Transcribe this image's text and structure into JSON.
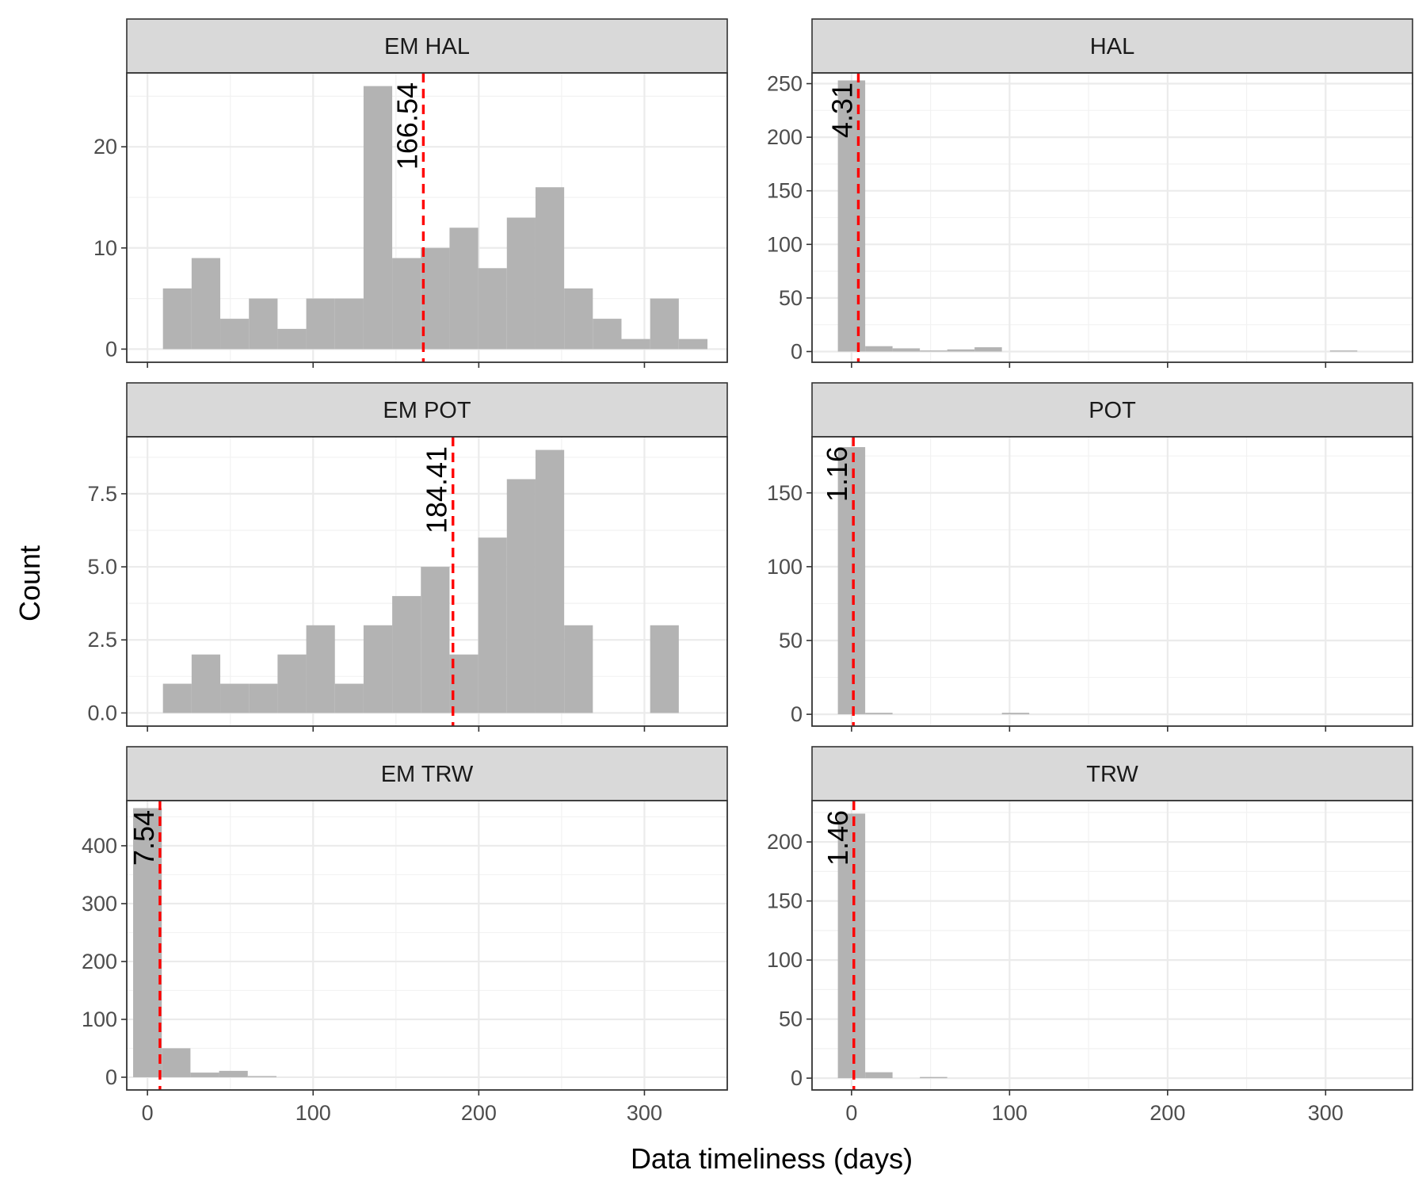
{
  "figure": {
    "xlabel": "Data timeliness (days)",
    "ylabel": "Count",
    "x_ticks": [
      0,
      100,
      200,
      300
    ],
    "colors": {
      "bar": "#b3b3b3",
      "median_line": "#ff0000",
      "strip_bg": "#d9d9d9",
      "panel_border": "#333333",
      "grid_major": "#ebebeb"
    }
  },
  "chart_data": [
    {
      "type": "bar",
      "title": "EM HAL",
      "panel_title": "EM HAL",
      "xlim": [
        -12.5,
        350
      ],
      "ylim": [
        -1.3,
        27.3
      ],
      "y_ticks": [
        0,
        10,
        20
      ],
      "y_tick_labels": [
        "0",
        "10",
        "20"
      ],
      "bin_width": 17.3,
      "bins": [
        {
          "x": 18,
          "count": 6
        },
        {
          "x": 35.3,
          "count": 9
        },
        {
          "x": 52.6,
          "count": 3
        },
        {
          "x": 69.9,
          "count": 5
        },
        {
          "x": 87.2,
          "count": 2
        },
        {
          "x": 104.5,
          "count": 5
        },
        {
          "x": 121.8,
          "count": 5
        },
        {
          "x": 139.1,
          "count": 26
        },
        {
          "x": 156.4,
          "count": 9
        },
        {
          "x": 173.7,
          "count": 10
        },
        {
          "x": 191,
          "count": 12
        },
        {
          "x": 208.3,
          "count": 8
        },
        {
          "x": 225.6,
          "count": 13
        },
        {
          "x": 242.9,
          "count": 16
        },
        {
          "x": 260.2,
          "count": 6
        },
        {
          "x": 277.5,
          "count": 3
        },
        {
          "x": 294.8,
          "count": 1
        },
        {
          "x": 312.1,
          "count": 5
        },
        {
          "x": 329.4,
          "count": 1
        }
      ],
      "median": 166.54,
      "median_label": "166.54"
    },
    {
      "type": "bar",
      "title": "HAL",
      "panel_title": "HAL",
      "xlim": [
        -25,
        355
      ],
      "ylim": [
        -10,
        260
      ],
      "y_ticks": [
        0,
        50,
        100,
        150,
        200,
        250
      ],
      "y_tick_labels": [
        "0",
        "50",
        "100",
        "150",
        "200",
        "250"
      ],
      "bin_width": 17.3,
      "bins": [
        {
          "x": 0,
          "count": 253
        },
        {
          "x": 17.3,
          "count": 5
        },
        {
          "x": 34.6,
          "count": 3
        },
        {
          "x": 51.9,
          "count": 1
        },
        {
          "x": 69.2,
          "count": 2
        },
        {
          "x": 86.5,
          "count": 4
        },
        {
          "x": 311.4,
          "count": 1
        }
      ],
      "median": 4.31,
      "median_label": "4.31"
    },
    {
      "type": "bar",
      "title": "EM POT",
      "panel_title": "EM POT",
      "xlim": [
        -12.5,
        350
      ],
      "ylim": [
        -0.45,
        9.45
      ],
      "y_ticks": [
        0,
        2.5,
        5,
        7.5
      ],
      "y_tick_labels": [
        "0.0",
        "2.5",
        "5.0",
        "7.5"
      ],
      "bin_width": 17.3,
      "bins": [
        {
          "x": 18,
          "count": 1
        },
        {
          "x": 35.3,
          "count": 2
        },
        {
          "x": 52.6,
          "count": 1
        },
        {
          "x": 69.9,
          "count": 1
        },
        {
          "x": 87.2,
          "count": 2
        },
        {
          "x": 104.5,
          "count": 3
        },
        {
          "x": 121.8,
          "count": 1
        },
        {
          "x": 139.1,
          "count": 3
        },
        {
          "x": 156.4,
          "count": 4
        },
        {
          "x": 173.7,
          "count": 5
        },
        {
          "x": 191,
          "count": 2
        },
        {
          "x": 208.3,
          "count": 6
        },
        {
          "x": 225.6,
          "count": 8
        },
        {
          "x": 242.9,
          "count": 9
        },
        {
          "x": 260.2,
          "count": 3
        },
        {
          "x": 312.1,
          "count": 3
        }
      ],
      "median": 184.41,
      "median_label": "184.41"
    },
    {
      "type": "bar",
      "title": "POT",
      "panel_title": "POT",
      "xlim": [
        -25,
        355
      ],
      "ylim": [
        -8,
        188
      ],
      "y_ticks": [
        0,
        50,
        100,
        150
      ],
      "y_tick_labels": [
        "0",
        "50",
        "100",
        "150"
      ],
      "bin_width": 17.3,
      "bins": [
        {
          "x": 0,
          "count": 181
        },
        {
          "x": 17.3,
          "count": 1
        },
        {
          "x": 103.8,
          "count": 1
        }
      ],
      "median": 1.16,
      "median_label": "1.16"
    },
    {
      "type": "bar",
      "title": "EM TRW",
      "panel_title": "EM TRW",
      "xlim": [
        -12.5,
        350
      ],
      "ylim": [
        -22,
        478
      ],
      "y_ticks": [
        0,
        100,
        200,
        300,
        400
      ],
      "y_tick_labels": [
        "0",
        "100",
        "200",
        "300",
        "400"
      ],
      "bin_width": 17.3,
      "bins": [
        {
          "x": 0,
          "count": 465
        },
        {
          "x": 17.3,
          "count": 50
        },
        {
          "x": 34.6,
          "count": 8
        },
        {
          "x": 51.9,
          "count": 11
        },
        {
          "x": 69.2,
          "count": 2
        }
      ],
      "median": 7.54,
      "median_label": "7.54"
    },
    {
      "type": "bar",
      "title": "TRW",
      "panel_title": "TRW",
      "xlim": [
        -25,
        355
      ],
      "ylim": [
        -10,
        235
      ],
      "y_ticks": [
        0,
        50,
        100,
        150,
        200
      ],
      "y_tick_labels": [
        "0",
        "50",
        "100",
        "150",
        "200"
      ],
      "bin_width": 17.3,
      "bins": [
        {
          "x": 0,
          "count": 224
        },
        {
          "x": 17.3,
          "count": 5
        },
        {
          "x": 51.9,
          "count": 1
        }
      ],
      "median": 1.46,
      "median_label": "1.46"
    }
  ]
}
